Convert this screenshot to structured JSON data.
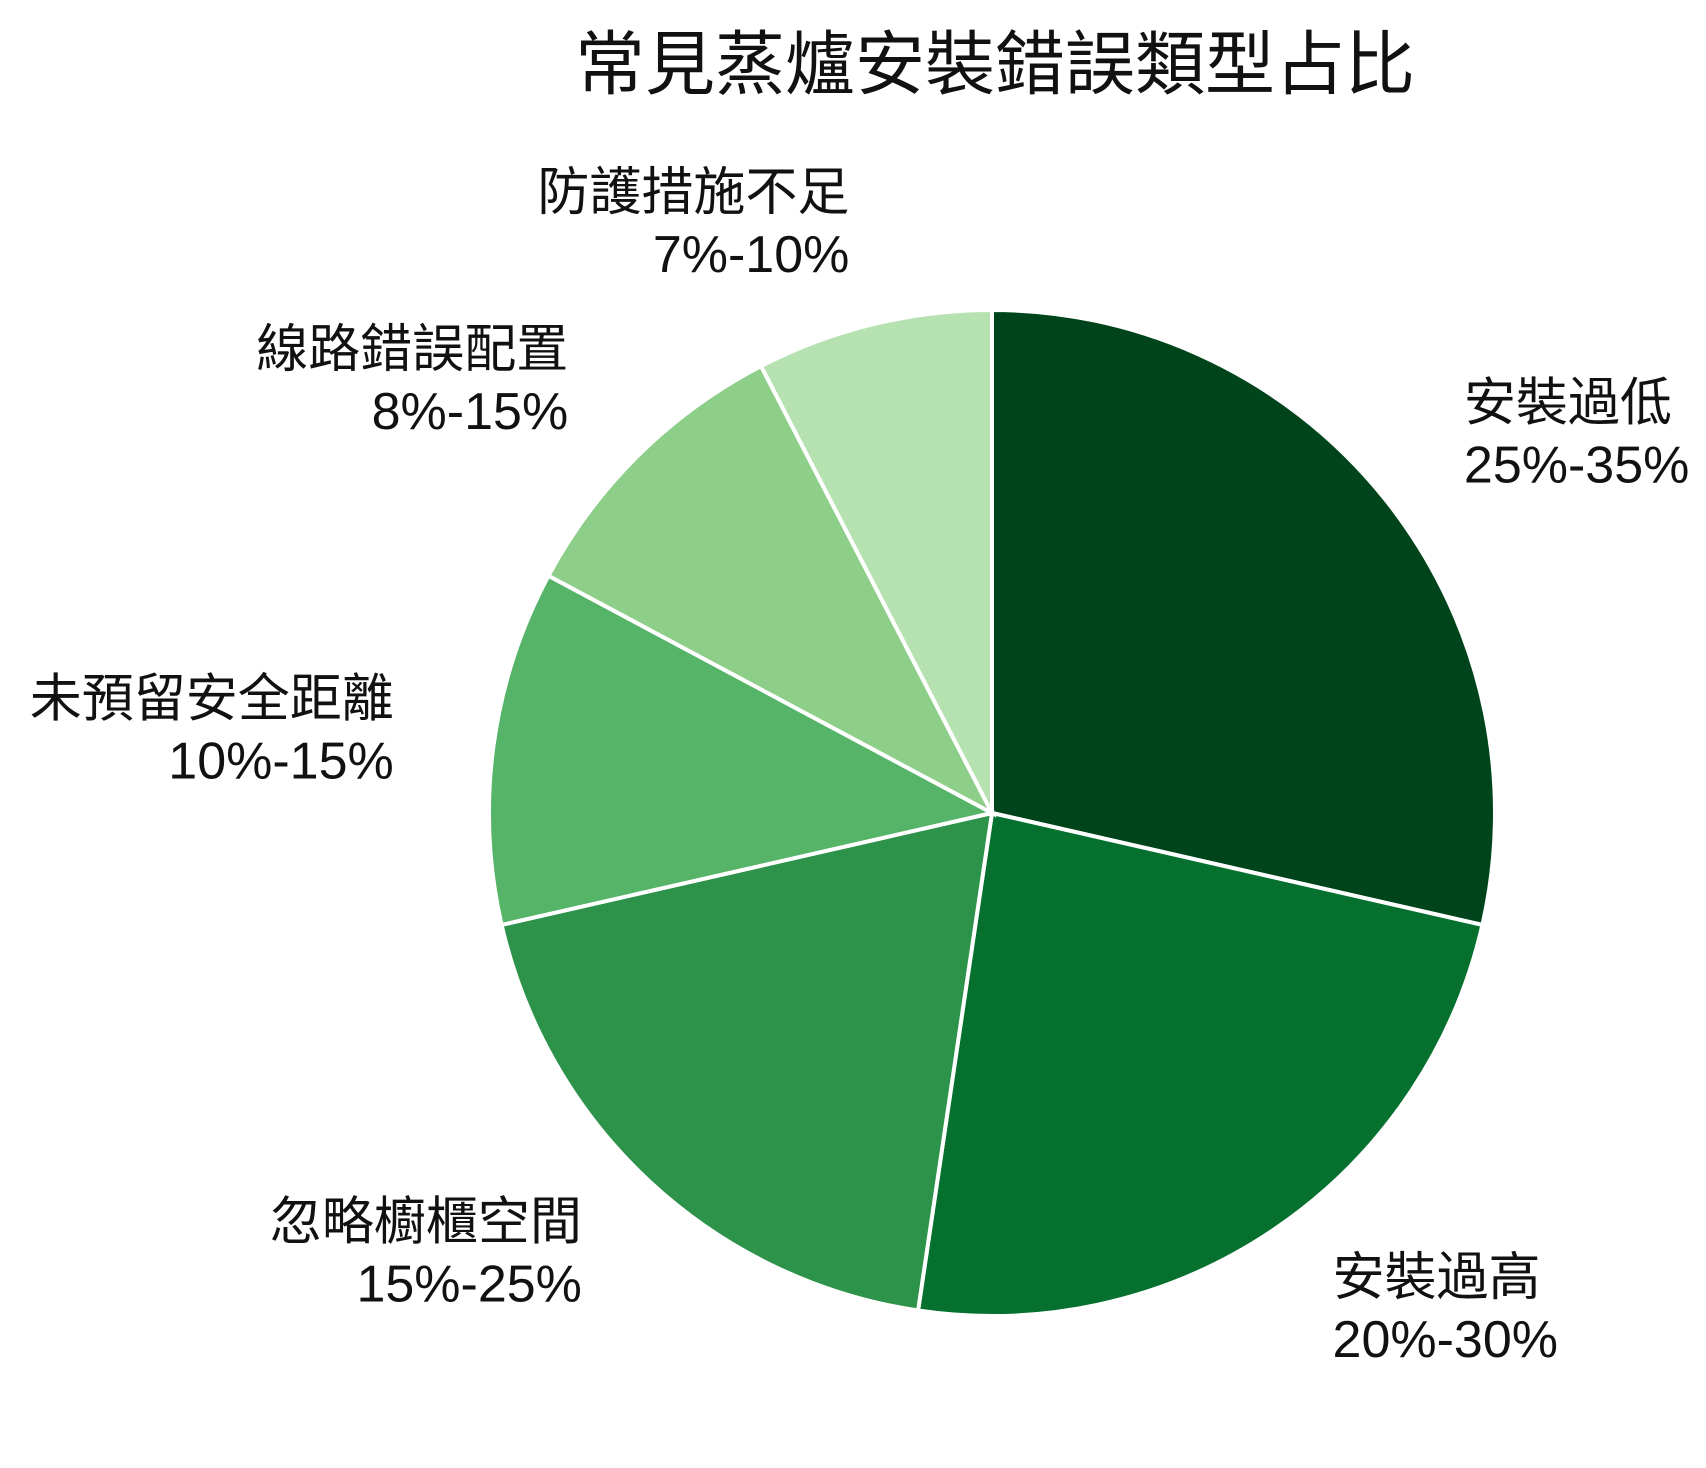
{
  "chart_data": {
    "type": "pie",
    "title": "常見蒸爐安裝錯誤類型占比",
    "categories": [
      "安裝過低",
      "安裝過高",
      "忽略櫥櫃空間",
      "未預留安全距離",
      "線路錯誤配置",
      "防護措施不足"
    ],
    "values": [
      28.6,
      23.8,
      19.1,
      11.4,
      9.6,
      7.6
    ],
    "value_labels": [
      "25%-35%",
      "20%-30%",
      "15%-25%",
      "10%-15%",
      "8%-15%",
      "7%-10%"
    ],
    "colors": [
      "#00441b",
      "#06712f",
      "#2d924a",
      "#55b467",
      "#8dce88",
      "#b6e2b2"
    ]
  }
}
